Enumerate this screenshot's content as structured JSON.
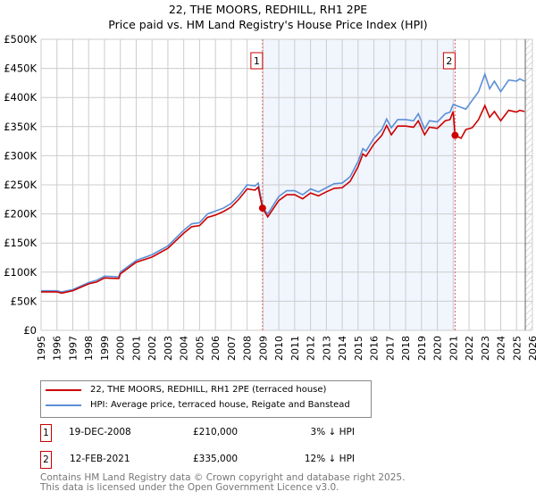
{
  "title": "22, THE MOORS, REDHILL, RH1 2PE",
  "subtitle": "Price paid vs. HM Land Registry's House Price Index (HPI)",
  "chart_data": {
    "type": "line",
    "xlim": [
      1995,
      2026
    ],
    "ylim": [
      0,
      500000
    ],
    "yticks": [
      {
        "v": 0,
        "l": "£0"
      },
      {
        "v": 50000,
        "l": "£50K"
      },
      {
        "v": 100000,
        "l": "£100K"
      },
      {
        "v": 150000,
        "l": "£150K"
      },
      {
        "v": 200000,
        "l": "£200K"
      },
      {
        "v": 250000,
        "l": "£250K"
      },
      {
        "v": 300000,
        "l": "£300K"
      },
      {
        "v": 350000,
        "l": "£350K"
      },
      {
        "v": 400000,
        "l": "£400K"
      },
      {
        "v": 450000,
        "l": "£450K"
      },
      {
        "v": 500000,
        "l": "£500K"
      }
    ],
    "xticks": [
      "1995",
      "1996",
      "1997",
      "1998",
      "1999",
      "2000",
      "2001",
      "2002",
      "2003",
      "2004",
      "2005",
      "2006",
      "2007",
      "2008",
      "2009",
      "2010",
      "2011",
      "2012",
      "2013",
      "2014",
      "2015",
      "2016",
      "2017",
      "2018",
      "2019",
      "2020",
      "2021",
      "2022",
      "2023",
      "2024",
      "2025",
      "2026"
    ],
    "series": [
      {
        "name": "22, THE MOORS, REDHILL, RH1 2PE (terraced house)",
        "color": "#cc0000",
        "points": [
          [
            1995,
            66
          ],
          [
            1996,
            66
          ],
          [
            1996.3,
            64
          ],
          [
            1997,
            68
          ],
          [
            1998,
            80
          ],
          [
            1998.5,
            83
          ],
          [
            1999,
            90
          ],
          [
            1999.9,
            89
          ],
          [
            2000,
            97
          ],
          [
            2001,
            117
          ],
          [
            2002,
            126
          ],
          [
            2003,
            141
          ],
          [
            2004,
            167
          ],
          [
            2004.5,
            178
          ],
          [
            2005,
            180
          ],
          [
            2005.5,
            194
          ],
          [
            2006,
            198
          ],
          [
            2006.5,
            204
          ],
          [
            2007,
            212
          ],
          [
            2007.5,
            226
          ],
          [
            2008,
            243
          ],
          [
            2008.5,
            241
          ],
          [
            2008.7,
            246
          ],
          [
            2008.97,
            210
          ],
          [
            2009.3,
            195
          ],
          [
            2010,
            223
          ],
          [
            2010.5,
            233
          ],
          [
            2011,
            233
          ],
          [
            2011.5,
            226
          ],
          [
            2012,
            236
          ],
          [
            2012.5,
            231
          ],
          [
            2013,
            238
          ],
          [
            2013.5,
            244
          ],
          [
            2014,
            245
          ],
          [
            2014.5,
            256
          ],
          [
            2015,
            281
          ],
          [
            2015.3,
            303
          ],
          [
            2015.5,
            299
          ],
          [
            2016,
            320
          ],
          [
            2016.5,
            335
          ],
          [
            2016.8,
            352
          ],
          [
            2017.1,
            336
          ],
          [
            2017.5,
            351
          ],
          [
            2018,
            351
          ],
          [
            2018.5,
            349
          ],
          [
            2018.8,
            360
          ],
          [
            2019.2,
            336
          ],
          [
            2019.5,
            349
          ],
          [
            2020,
            347
          ],
          [
            2020.5,
            360
          ],
          [
            2020.8,
            362
          ],
          [
            2021.0,
            376
          ],
          [
            2021.12,
            335
          ],
          [
            2021.5,
            330
          ],
          [
            2021.8,
            345
          ],
          [
            2022.2,
            348
          ],
          [
            2022.6,
            362
          ],
          [
            2023,
            386
          ],
          [
            2023.3,
            366
          ],
          [
            2023.6,
            376
          ],
          [
            2024,
            360
          ],
          [
            2024.5,
            378
          ],
          [
            2025,
            375
          ],
          [
            2025.2,
            378
          ],
          [
            2025.5,
            376
          ]
        ]
      },
      {
        "name": "HPI: Average price, terraced house, Reigate and Banstead",
        "color": "#5b8fd6",
        "points": [
          [
            1995,
            68
          ],
          [
            1996,
            68
          ],
          [
            1996.3,
            66
          ],
          [
            1997,
            70
          ],
          [
            1998,
            82
          ],
          [
            1998.5,
            86
          ],
          [
            1999,
            93
          ],
          [
            1999.9,
            92
          ],
          [
            2000,
            100
          ],
          [
            2001,
            120
          ],
          [
            2002,
            130
          ],
          [
            2003,
            145
          ],
          [
            2004,
            172
          ],
          [
            2004.5,
            183
          ],
          [
            2005,
            185
          ],
          [
            2005.5,
            200
          ],
          [
            2006,
            205
          ],
          [
            2006.5,
            210
          ],
          [
            2007,
            218
          ],
          [
            2007.5,
            232
          ],
          [
            2008,
            250
          ],
          [
            2008.5,
            248
          ],
          [
            2008.7,
            253
          ],
          [
            2009,
            210
          ],
          [
            2009.3,
            200
          ],
          [
            2010,
            230
          ],
          [
            2010.5,
            240
          ],
          [
            2011,
            240
          ],
          [
            2011.5,
            233
          ],
          [
            2012,
            243
          ],
          [
            2012.5,
            238
          ],
          [
            2013,
            245
          ],
          [
            2013.5,
            252
          ],
          [
            2014,
            253
          ],
          [
            2014.5,
            264
          ],
          [
            2015,
            290
          ],
          [
            2015.3,
            312
          ],
          [
            2015.5,
            308
          ],
          [
            2016,
            330
          ],
          [
            2016.5,
            345
          ],
          [
            2016.8,
            363
          ],
          [
            2017.1,
            348
          ],
          [
            2017.5,
            362
          ],
          [
            2018,
            362
          ],
          [
            2018.5,
            360
          ],
          [
            2018.8,
            372
          ],
          [
            2019.2,
            346
          ],
          [
            2019.5,
            360
          ],
          [
            2020,
            358
          ],
          [
            2020.5,
            372
          ],
          [
            2020.8,
            375
          ],
          [
            2021,
            388
          ],
          [
            2021.5,
            383
          ],
          [
            2021.8,
            380
          ],
          [
            2022.2,
            395
          ],
          [
            2022.6,
            410
          ],
          [
            2023,
            440
          ],
          [
            2023.3,
            415
          ],
          [
            2023.6,
            428
          ],
          [
            2024,
            410
          ],
          [
            2024.5,
            430
          ],
          [
            2025,
            428
          ],
          [
            2025.2,
            432
          ],
          [
            2025.5,
            428
          ]
        ]
      }
    ],
    "sales": [
      {
        "label": "1",
        "date": "19-DEC-2008",
        "x": 2008.97,
        "price": "£210,000",
        "value": 210,
        "hpi": "3% ↓ HPI"
      },
      {
        "label": "2",
        "date": "12-FEB-2021",
        "x": 2021.12,
        "price": "£335,000",
        "value": 335,
        "hpi": "12% ↓ HPI"
      }
    ]
  },
  "footer": [
    "Contains HM Land Registry data © Crown copyright and database right 2025.",
    "This data is licensed under the Open Government Licence v3.0."
  ]
}
